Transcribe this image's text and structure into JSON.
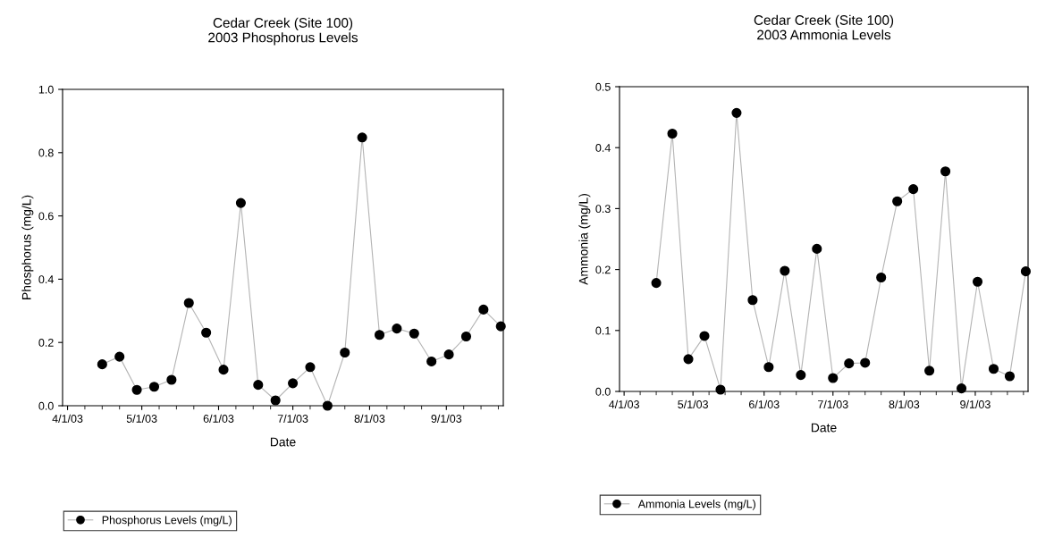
{
  "chart_data": [
    {
      "type": "line",
      "title": "Cedar Creek (Site 100)\n2003 Phosphorus Levels",
      "xlabel": "Date",
      "ylabel": "Phosphorus (mg/L)",
      "x": [
        "2003-04-15",
        "2003-04-22",
        "2003-04-29",
        "2003-05-06",
        "2003-05-13",
        "2003-05-20",
        "2003-05-27",
        "2003-06-03",
        "2003-06-10",
        "2003-06-17",
        "2003-06-24",
        "2003-07-01",
        "2003-07-08",
        "2003-07-15",
        "2003-07-22",
        "2003-07-29",
        "2003-08-05",
        "2003-08-12",
        "2003-08-19",
        "2003-08-26",
        "2003-09-02",
        "2003-09-09",
        "2003-09-16",
        "2003-09-23"
      ],
      "series": [
        {
          "name": "Phosphorus Levels (mg/L)",
          "color": "#000000",
          "values": [
            0.131,
            0.155,
            0.05,
            0.06,
            0.082,
            0.325,
            0.231,
            0.114,
            0.641,
            0.066,
            0.017,
            0.071,
            0.122,
            0.0,
            0.168,
            0.848,
            0.224,
            0.244,
            0.228,
            0.14,
            0.162,
            0.219,
            0.304,
            0.251
          ]
        }
      ],
      "xlim": [
        "2003-03-30",
        "2003-09-24"
      ],
      "xticks": [
        {
          "value": "2003-04-01",
          "label": "4/1/03"
        },
        {
          "value": "2003-05-01",
          "label": "5/1/03"
        },
        {
          "value": "2003-06-01",
          "label": "6/1/03"
        },
        {
          "value": "2003-07-01",
          "label": "7/1/03"
        },
        {
          "value": "2003-08-01",
          "label": "8/1/03"
        },
        {
          "value": "2003-09-01",
          "label": "9/1/03"
        }
      ],
      "ylim": [
        0,
        1.0
      ],
      "yticks": [
        {
          "value": 0,
          "label": "0.0"
        },
        {
          "value": 0.2,
          "label": "0.2"
        },
        {
          "value": 0.4,
          "label": "0.4"
        },
        {
          "value": 0.6,
          "label": "0.6"
        },
        {
          "value": 0.8,
          "label": "0.8"
        },
        {
          "value": 1.0,
          "label": "1.0"
        }
      ],
      "marker": "circle",
      "line_style": "solid",
      "grid": false,
      "legend": "bottom left"
    },
    {
      "type": "line",
      "title": "Cedar Creek (Site 100)\n2003 Ammonia Levels",
      "xlabel": "Date",
      "ylabel": "Ammonia (mg/L)",
      "x": [
        "2003-04-15",
        "2003-04-22",
        "2003-04-29",
        "2003-05-06",
        "2003-05-13",
        "2003-05-20",
        "2003-05-27",
        "2003-06-03",
        "2003-06-10",
        "2003-06-17",
        "2003-06-24",
        "2003-07-01",
        "2003-07-08",
        "2003-07-15",
        "2003-07-22",
        "2003-07-29",
        "2003-08-05",
        "2003-08-12",
        "2003-08-19",
        "2003-08-26",
        "2003-09-02",
        "2003-09-09",
        "2003-09-16",
        "2003-09-23"
      ],
      "series": [
        {
          "name": "Ammonia Levels (mg/L)",
          "color": "#000000",
          "values": [
            0.178,
            0.423,
            0.053,
            0.091,
            0.003,
            0.457,
            0.15,
            0.04,
            0.198,
            0.027,
            0.234,
            0.022,
            0.046,
            0.047,
            0.187,
            0.312,
            0.332,
            0.034,
            0.361,
            0.005,
            0.18,
            0.037,
            0.025,
            0.197
          ]
        }
      ],
      "xlim": [
        "2003-03-30",
        "2003-09-24"
      ],
      "xticks": [
        {
          "value": "2003-04-01",
          "label": "4/1/03"
        },
        {
          "value": "2003-05-01",
          "label": "5/1/03"
        },
        {
          "value": "2003-06-01",
          "label": "6/1/03"
        },
        {
          "value": "2003-07-01",
          "label": "7/1/03"
        },
        {
          "value": "2003-08-01",
          "label": "8/1/03"
        },
        {
          "value": "2003-09-01",
          "label": "9/1/03"
        }
      ],
      "ylim": [
        0,
        0.5
      ],
      "yticks": [
        {
          "value": 0,
          "label": "0.0"
        },
        {
          "value": 0.1,
          "label": "0.1"
        },
        {
          "value": 0.2,
          "label": "0.2"
        },
        {
          "value": 0.3,
          "label": "0.3"
        },
        {
          "value": 0.4,
          "label": "0.4"
        },
        {
          "value": 0.5,
          "label": "0.5"
        }
      ],
      "marker": "circle",
      "line_style": "solid",
      "grid": false,
      "legend": "bottom left"
    }
  ]
}
